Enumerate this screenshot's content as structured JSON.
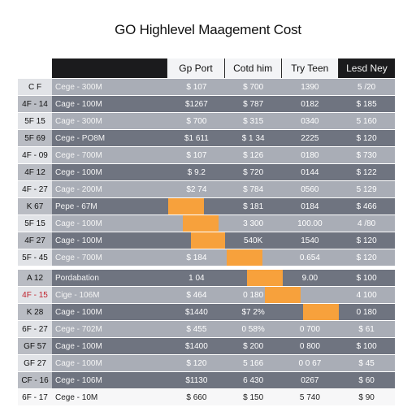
{
  "title": "GO Highlevel Maagement Cost",
  "columns": [
    "Gp Port",
    "Cotd him",
    "Try Teen",
    "Lesd Ney"
  ],
  "rows": [
    {
      "id": "C F",
      "name": "Cege - 300M",
      "values": [
        "$ 107",
        "$ 700",
        "1390",
        "5 /20"
      ],
      "tone": "light"
    },
    {
      "id": "4F - 14",
      "name": "Cage - 100M",
      "values": [
        "$1267",
        "$ 787",
        "0182",
        "$ 185"
      ],
      "tone": "dark"
    },
    {
      "id": "5F 15",
      "name": "Cage - 300M",
      "values": [
        "$ 700",
        "$ 315",
        "0340",
        "5 160"
      ],
      "tone": "light"
    },
    {
      "id": "5F 69",
      "name": "Cege - PO8M",
      "values": [
        "$1 611",
        "$ 1 34",
        "2225",
        "$ 120"
      ],
      "tone": "dark"
    },
    {
      "id": "4F - 09",
      "name": "Cege - 700M",
      "values": [
        "$ 107",
        "$ 126",
        "0180",
        "$ 730"
      ],
      "tone": "light"
    },
    {
      "id": "4F 12",
      "name": "Cege - 100M",
      "values": [
        "$ 9.2",
        "$ 720",
        "0144",
        "$ 122"
      ],
      "tone": "dark"
    },
    {
      "id": "4F - 27",
      "name": "Cage - 200M",
      "values": [
        "$2 74",
        "$ 784",
        "0560",
        "5 129"
      ],
      "tone": "light"
    },
    {
      "id": "K 67",
      "name": "Pepe - 67M",
      "values": [
        "",
        "$ 181",
        "0184",
        "$ 466"
      ],
      "tone": "dark"
    },
    {
      "id": "5F 15",
      "name": "Cage - 100M",
      "values": [
        "",
        "3 300",
        "100.00",
        "4 /80"
      ],
      "tone": "light"
    },
    {
      "id": "4F 27",
      "name": "Cage - 100M",
      "values": [
        "",
        "540K",
        "1540",
        "$ 120"
      ],
      "tone": "dark"
    },
    {
      "id": "5F - 45",
      "name": "Cege - 700M",
      "values": [
        "$ 184",
        "",
        "0.654",
        "$ 120"
      ],
      "tone": "light"
    },
    {
      "id": "A 12",
      "name": "Pordabation",
      "values": [
        "1 04",
        "",
        "9.00",
        "$ 100"
      ],
      "tone": "dark",
      "gap": true
    },
    {
      "id": "4F - 15",
      "name": "Cige - 106M",
      "values": [
        "$ 464",
        "0 180",
        "",
        "4 100"
      ],
      "tone": "light",
      "alert": true
    },
    {
      "id": "K 28",
      "name": "Cage - 100M",
      "values": [
        "$1440",
        "$7 2%",
        "",
        "0 180"
      ],
      "tone": "dark"
    },
    {
      "id": "6F - 27",
      "name": "Cege - 702M",
      "values": [
        "$ 455",
        "0 58%",
        "0 700",
        "$ 61"
      ],
      "tone": "light"
    },
    {
      "id": "GF 57",
      "name": "Cage - 100M",
      "values": [
        "$1400",
        "$ 200",
        "0 800",
        "$ 100"
      ],
      "tone": "dark"
    },
    {
      "id": "GF 27",
      "name": "Cage - 100M",
      "values": [
        "$ 120",
        "5 166",
        "0 0 67",
        "$ 45"
      ],
      "tone": "light"
    },
    {
      "id": "CF - 16",
      "name": "Cege - 106M",
      "values": [
        "$1130",
        "6 430",
        "0267",
        "$ 60"
      ],
      "tone": "dark"
    },
    {
      "id": "6F - 17",
      "name": "Cege - 10M",
      "values": [
        "$ 660",
        "$ 150",
        "5 740",
        "$ 90"
      ],
      "tone": "white"
    }
  ],
  "colors": {
    "highlight": "#f7a13c",
    "header_dark": "#1b1b1d",
    "row_dark": "#6f7480",
    "row_light": "#a9adb6",
    "alert": "#c0202a"
  }
}
